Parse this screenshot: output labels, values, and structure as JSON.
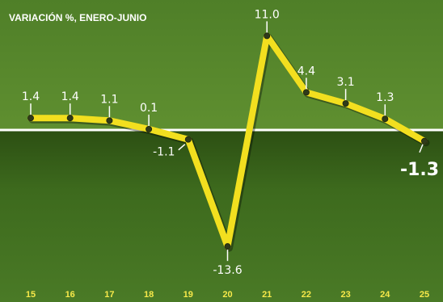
{
  "chart_data": {
    "type": "line",
    "title": "VARIACIÓN %, ENERO-JUNIO",
    "x": [
      "15",
      "16",
      "17",
      "18",
      "19",
      "20",
      "21",
      "22",
      "23",
      "24",
      "25"
    ],
    "series": [
      {
        "values": [
          1.4,
          1.4,
          1.1,
          0.1,
          -1.1,
          -13.6,
          11.0,
          4.4,
          3.1,
          1.3,
          -1.3
        ]
      }
    ],
    "data_labels": [
      "1.4",
      "1.4",
      "1.1",
      "0.1",
      "-1.1",
      "-13.6",
      "11.0",
      "4.4",
      "3.1",
      "1.3",
      "-1.3"
    ],
    "ylim": [
      -16,
      13
    ],
    "grid": false,
    "colors": {
      "line": "#f2df1f",
      "marker": "#2f3a1a",
      "zero_line": "#ffffff",
      "background_top": "#5b8a2e",
      "background_bottom": "#3f6b1f",
      "tick_labels": "#f7e94a",
      "labels": "#ffffff"
    }
  }
}
